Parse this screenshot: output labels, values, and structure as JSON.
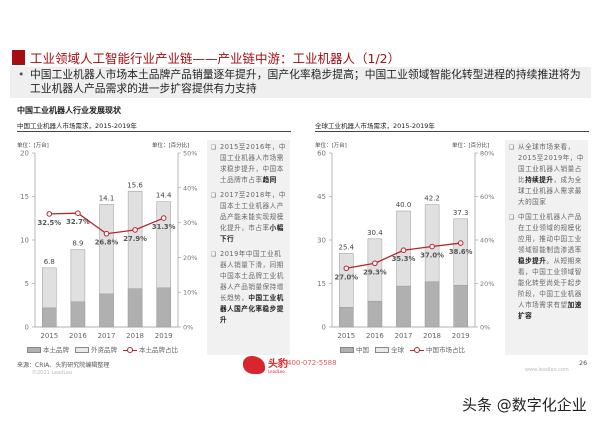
{
  "header": {
    "title": "工业领域人工智能行业产业链——产业链中游：工业机器人（1/2）",
    "bullet": "中国工业机器人市场本土品牌产品销量逐年提升，国产化率稳步提高；中国工业领域智能化转型进程的持续推进将为工业机器人产品需求的进一步扩容提供有力支持"
  },
  "section_title": "中国工业机器人行业发展现状",
  "chart_data": [
    {
      "type": "bar",
      "title": "中国工业机器人市场需求，2015-2019年",
      "left_unit": "单位：[万台]",
      "right_unit": "单位：[百分比]",
      "categories": [
        "2015",
        "2016",
        "2017",
        "2018",
        "2019"
      ],
      "stacked_overlay": true,
      "series": [
        {
          "name": "本土品牌",
          "type": "bar",
          "values": [
            2.2,
            2.9,
            3.8,
            4.4,
            4.5
          ],
          "color": "#b0b0b0"
        },
        {
          "name": "外资品牌",
          "type": "bar",
          "total_labels": [
            "6.8",
            "8.9",
            "14.1",
            "15.6",
            "14.4"
          ],
          "values": [
            6.8,
            8.9,
            14.1,
            15.6,
            14.4
          ],
          "color": "#e0e0e0"
        },
        {
          "name": "本土品牌占比",
          "type": "line",
          "axis": "right",
          "values": [
            32.5,
            32.7,
            26.8,
            27.9,
            31.3
          ],
          "labels": [
            "32.5%",
            "32.7%",
            "26.8%",
            "27.9%",
            "31.3%"
          ],
          "color": "#b5262d"
        }
      ],
      "ylim": [
        0,
        20
      ],
      "yticks": [
        "0",
        "5",
        "10",
        "15",
        "20"
      ],
      "y2lim": [
        0,
        50
      ],
      "y2ticks": [
        "0%",
        "10%",
        "20%",
        "30%",
        "40%",
        "50%"
      ],
      "legend": "bottom"
    },
    {
      "type": "bar",
      "title": "全球工业机器人市场需求，2015-2019年",
      "left_unit": "单位：[万台]",
      "right_unit": "单位：[百分比]",
      "categories": [
        "2015",
        "2016",
        "2017",
        "2018",
        "2019"
      ],
      "stacked_overlay": true,
      "series": [
        {
          "name": "中国",
          "type": "bar",
          "values": [
            6.8,
            8.9,
            14.1,
            15.6,
            14.4
          ],
          "color": "#b0b0b0"
        },
        {
          "name": "全球",
          "type": "bar",
          "total_labels": [
            "25.4",
            "30.4",
            "40.0",
            "42.2",
            "37.3"
          ],
          "values": [
            25.4,
            30.4,
            40.0,
            42.2,
            37.3
          ],
          "color": "#e0e0e0"
        },
        {
          "name": "中国市场占比",
          "type": "line",
          "axis": "right",
          "values": [
            27.0,
            29.3,
            35.3,
            37.0,
            38.6
          ],
          "labels": [
            "27.0%",
            "29.3%",
            "35.3%",
            "37.0%",
            "38.6%"
          ],
          "color": "#b5262d"
        }
      ],
      "ylim": [
        0,
        60
      ],
      "yticks": [
        "0",
        "15",
        "30",
        "45",
        "60"
      ],
      "y2lim": [
        0,
        80
      ],
      "y2ticks": [
        "0%",
        "20%",
        "40%",
        "60%",
        "80%"
      ],
      "legend": "bottom"
    }
  ],
  "notes_left": [
    {
      "text": "2015至2016年，中国工业机器人市场需求稳步提升，中国本土品牌市占率",
      "bold": "趋同"
    },
    {
      "text": "2017至2018年，中国本土工业机器人产品产能未能实现规模化提升，市占率",
      "bold": "小幅下行"
    },
    {
      "text": "2019年中国工业机器人销量下滑，同期中国本土品牌工业机器人产品销量保持增长趋势，",
      "bold": "中国工业机器人国产化率稳步提升"
    }
  ],
  "notes_right": [
    {
      "pre": "从全球市场来看，2015至2019年，中国工业机器人销量占比",
      "bold": "持续提升",
      "post": "，成为全球工业机器人需求最大的国家"
    },
    {
      "pre": "中国工业机器人产品在工业领域的规模化应用，推动中国工业领域智能制造渗透率",
      "bold": "稳步提升",
      "post": "。从短期来看，中国工业领域智能化转型尚处于起步阶段，中国工业机器人市场需求有望",
      "bold2": "加速扩容"
    }
  ],
  "footer": {
    "source": "来源：CRIA、头豹研究院编辑整理",
    "copyright": "©2021 LeadLeo",
    "logo_text": "头豹",
    "logo_sub": "LeadLeo",
    "phone": "400-072-5588",
    "website": "www.leadleo.com",
    "page": "26"
  },
  "watermark": "头条 @数字化企业"
}
